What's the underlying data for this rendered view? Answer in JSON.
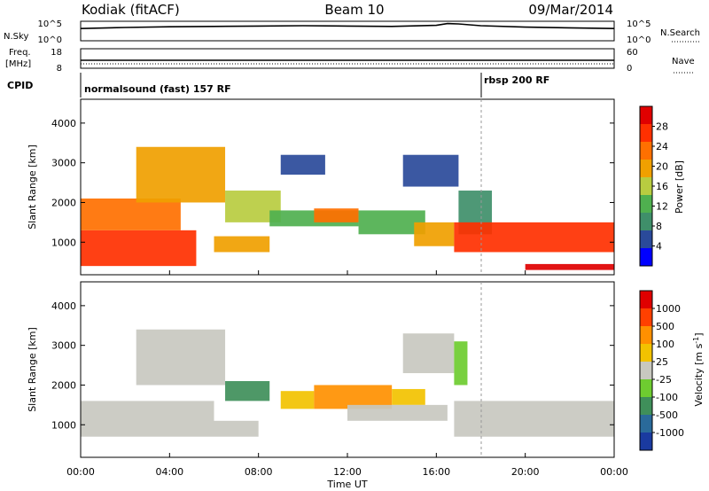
{
  "header": {
    "station": "Kodiak (fitACF)",
    "beam": "Beam 10",
    "date": "09/Mar/2014"
  },
  "noise_panel": {
    "left_label": "N.Sky",
    "right_label": "N.Search",
    "left_ticks": [
      "10^5",
      "10^0"
    ],
    "right_ticks": [
      "10^5",
      "10^0"
    ]
  },
  "freq_panel": {
    "left_label_1": "Freq.",
    "left_label_2": "[MHz]",
    "right_label": "Nave",
    "left_ticks": [
      "18",
      "8"
    ],
    "right_ticks": [
      "60",
      "0"
    ]
  },
  "cpid": {
    "label": "CPID",
    "segments": [
      {
        "text": "normalsound (fast) 157 RF",
        "start_hour": 0
      },
      {
        "text": "rbsp 200 RF",
        "start_hour": 18
      }
    ]
  },
  "colors": {
    "ground_scatter": "#c8c8c0",
    "power_scale": [
      "#0000ff",
      "#2a4a9a",
      "#3f8f6a",
      "#4fb04f",
      "#b8cc40",
      "#f0a000",
      "#ff7000",
      "#ff3000",
      "#e00000"
    ],
    "velocity_scale": [
      "#1a3aa0",
      "#2a6a9a",
      "#3f8f5a",
      "#6ecc30",
      "#c8c8c0",
      "#f2c200",
      "#ff9000",
      "#ff4000",
      "#e00000"
    ]
  },
  "chart_data": [
    {
      "type": "line",
      "name": "noise",
      "ylabel": "N.Sky",
      "x_hours": [
        0,
        2,
        4,
        6,
        8,
        10,
        12,
        14,
        16,
        16.5,
        17,
        18,
        20,
        22,
        24
      ],
      "y_log10": [
        3.2,
        3.5,
        3.7,
        3.8,
        3.9,
        4.0,
        3.9,
        3.8,
        4.1,
        4.6,
        4.5,
        4.0,
        3.6,
        3.4,
        3.2
      ]
    },
    {
      "type": "scatter",
      "name": "power",
      "title": "Power",
      "xlabel": "Time UT",
      "ylabel": "Slant Range [km]",
      "colorbar_label": "Power [dB]",
      "colorbar_ticks": [
        "28",
        "24",
        "20",
        "16",
        "12",
        "8",
        "4"
      ],
      "x_ticks": [
        "00:00",
        "04:00",
        "08:00",
        "12:00",
        "16:00",
        "20:00",
        "00:00"
      ],
      "y_ticks": [
        "1000",
        "2000",
        "3000",
        "4000"
      ],
      "xlim_hours": [
        0,
        24
      ],
      "ylim_km": [
        180,
        4600
      ],
      "regions": [
        {
          "x0": 0,
          "x1": 5.2,
          "y0": 400,
          "y1": 1300,
          "level": 7
        },
        {
          "x0": 0,
          "x1": 4.5,
          "y0": 1300,
          "y1": 2100,
          "level": 6
        },
        {
          "x0": 2.5,
          "x1": 6.5,
          "y0": 2000,
          "y1": 3400,
          "level": 5
        },
        {
          "x0": 6.0,
          "x1": 8.5,
          "y0": 750,
          "y1": 1150,
          "level": 5
        },
        {
          "x0": 6.5,
          "x1": 9.0,
          "y0": 1500,
          "y1": 2300,
          "level": 4
        },
        {
          "x0": 8.5,
          "x1": 12.5,
          "y0": 1400,
          "y1": 1800,
          "level": 3
        },
        {
          "x0": 10.5,
          "x1": 12.5,
          "y0": 1500,
          "y1": 1850,
          "level": 6
        },
        {
          "x0": 12.5,
          "x1": 15.5,
          "y0": 1200,
          "y1": 1800,
          "level": 3
        },
        {
          "x0": 15.0,
          "x1": 16.8,
          "y0": 900,
          "y1": 1500,
          "level": 5
        },
        {
          "x0": 9.0,
          "x1": 11.0,
          "y0": 2700,
          "y1": 3200,
          "level": 1
        },
        {
          "x0": 14.5,
          "x1": 17.0,
          "y0": 2400,
          "y1": 3200,
          "level": 1
        },
        {
          "x0": 17.0,
          "x1": 18.5,
          "y0": 1200,
          "y1": 2300,
          "level": 2
        },
        {
          "x0": 16.8,
          "x1": 24.0,
          "y0": 750,
          "y1": 1500,
          "level": 7
        },
        {
          "x0": 20.0,
          "x1": 24.0,
          "y0": 300,
          "y1": 450,
          "level": 8
        }
      ]
    },
    {
      "type": "scatter",
      "name": "velocity",
      "title": "Velocity",
      "xlabel": "Time UT",
      "ylabel": "Slant Range [km]",
      "colorbar_label": "Velocity [m s",
      "colorbar_label_sup": "-1",
      "colorbar_label_end": "]",
      "colorbar_ticks": [
        "1000",
        "500",
        "100",
        "25",
        "-25",
        "-100",
        "-500",
        "-1000"
      ],
      "x_ticks": [
        "00:00",
        "04:00",
        "08:00",
        "12:00",
        "16:00",
        "20:00",
        "00:00"
      ],
      "y_ticks": [
        "1000",
        "2000",
        "3000",
        "4000"
      ],
      "xlim_hours": [
        0,
        24
      ],
      "ylim_km": [
        180,
        4600
      ],
      "regions": [
        {
          "x0": 0,
          "x1": 6.0,
          "y0": 700,
          "y1": 1600,
          "level": 4
        },
        {
          "x0": 2.5,
          "x1": 6.5,
          "y0": 2000,
          "y1": 3400,
          "level": 4
        },
        {
          "x0": 6.5,
          "x1": 8.5,
          "y0": 1600,
          "y1": 2100,
          "level": 2
        },
        {
          "x0": 6.0,
          "x1": 8.0,
          "y0": 700,
          "y1": 1100,
          "level": 4
        },
        {
          "x0": 9.0,
          "x1": 10.5,
          "y0": 1400,
          "y1": 1850,
          "level": 5
        },
        {
          "x0": 10.5,
          "x1": 14.0,
          "y0": 1400,
          "y1": 2000,
          "level": 6
        },
        {
          "x0": 14.0,
          "x1": 15.5,
          "y0": 1500,
          "y1": 1900,
          "level": 5
        },
        {
          "x0": 12.0,
          "x1": 16.5,
          "y0": 1100,
          "y1": 1500,
          "level": 4
        },
        {
          "x0": 14.5,
          "x1": 16.8,
          "y0": 2300,
          "y1": 3300,
          "level": 4
        },
        {
          "x0": 16.8,
          "x1": 17.4,
          "y0": 2000,
          "y1": 3100,
          "level": 3
        },
        {
          "x0": 16.8,
          "x1": 24.0,
          "y0": 700,
          "y1": 1600,
          "level": 4
        }
      ]
    }
  ]
}
